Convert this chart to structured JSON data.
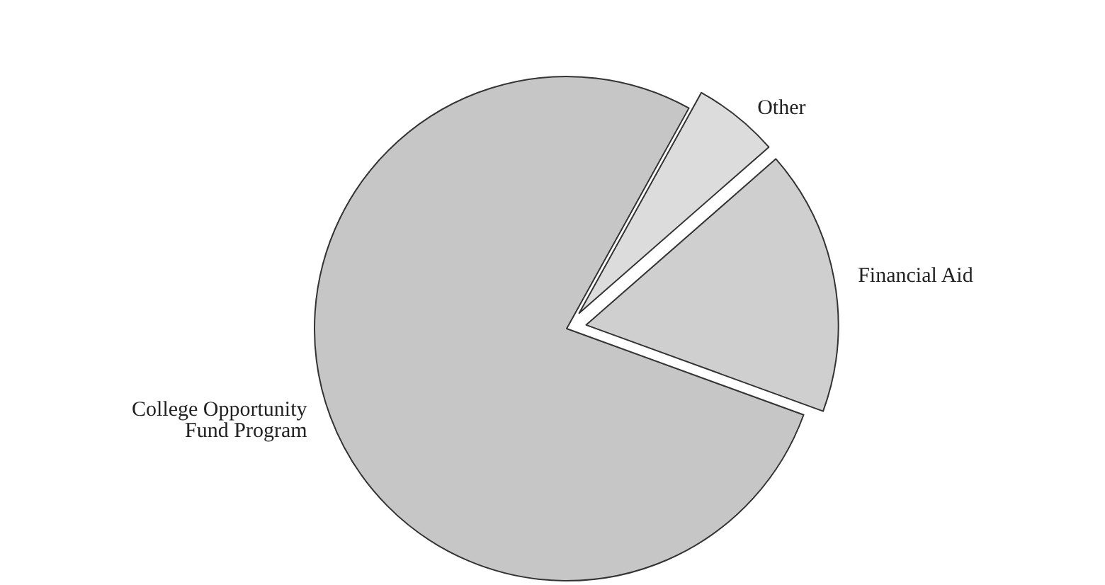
{
  "chart_data": {
    "type": "pie",
    "categories": [
      "Other",
      "Financial Aid",
      "College Opportunity\nFund Program"
    ],
    "values": [
      5.5,
      17,
      77.5
    ],
    "colors": [
      "#dcdcdc",
      "#cfcfcf",
      "#c6c6c6"
    ]
  }
}
